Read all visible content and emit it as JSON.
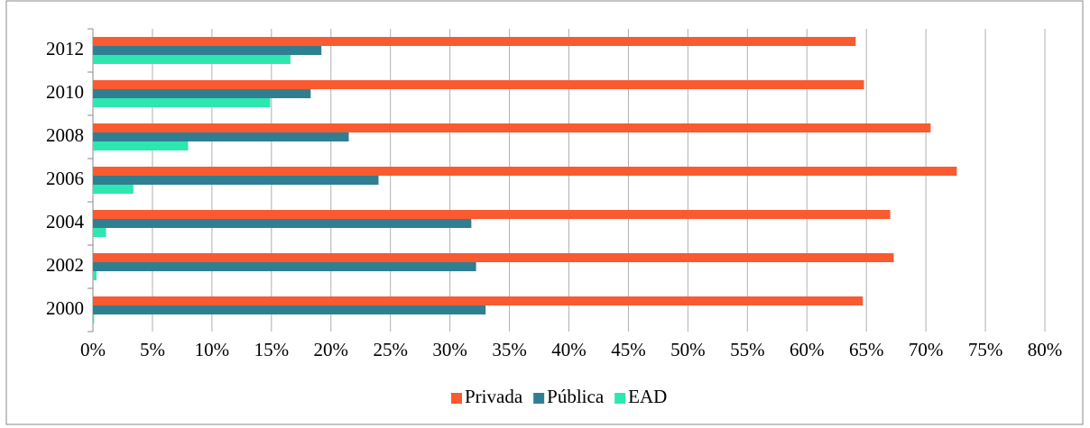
{
  "chart_data": {
    "type": "bar",
    "orientation": "horizontal",
    "categories": [
      "2000",
      "2002",
      "2004",
      "2006",
      "2008",
      "2010",
      "2012"
    ],
    "series": [
      {
        "name": "Privada",
        "color": "#fa5a30",
        "values": [
          64.7,
          67.3,
          67.0,
          72.6,
          70.4,
          64.8,
          64.1
        ]
      },
      {
        "name": "Pública",
        "color": "#2f7f93",
        "values": [
          33.0,
          32.2,
          31.8,
          24.0,
          21.5,
          18.3,
          19.2
        ]
      },
      {
        "name": "EAD",
        "color": "#2ee6b0",
        "values": [
          0.1,
          0.3,
          1.1,
          3.4,
          8.0,
          14.9,
          16.6
        ]
      }
    ],
    "xlim": [
      0,
      80
    ],
    "xticks": [
      {
        "value": 0,
        "label": "0%"
      },
      {
        "value": 5,
        "label": "5%"
      },
      {
        "value": 10,
        "label": "10%"
      },
      {
        "value": 15,
        "label": "15%"
      },
      {
        "value": 20,
        "label": "20%"
      },
      {
        "value": 25,
        "label": "25%"
      },
      {
        "value": 30,
        "label": "30%"
      },
      {
        "value": 35,
        "label": "35%"
      },
      {
        "value": 40,
        "label": "40%"
      },
      {
        "value": 45,
        "label": "45%"
      },
      {
        "value": 50,
        "label": "50%"
      },
      {
        "value": 55,
        "label": "55%"
      },
      {
        "value": 60,
        "label": "60%"
      },
      {
        "value": 65,
        "label": "65%"
      },
      {
        "value": 70,
        "label": "70%"
      },
      {
        "value": 75,
        "label": "75%"
      },
      {
        "value": 80,
        "label": "80%"
      }
    ],
    "grid": true,
    "legend": "bottom"
  }
}
